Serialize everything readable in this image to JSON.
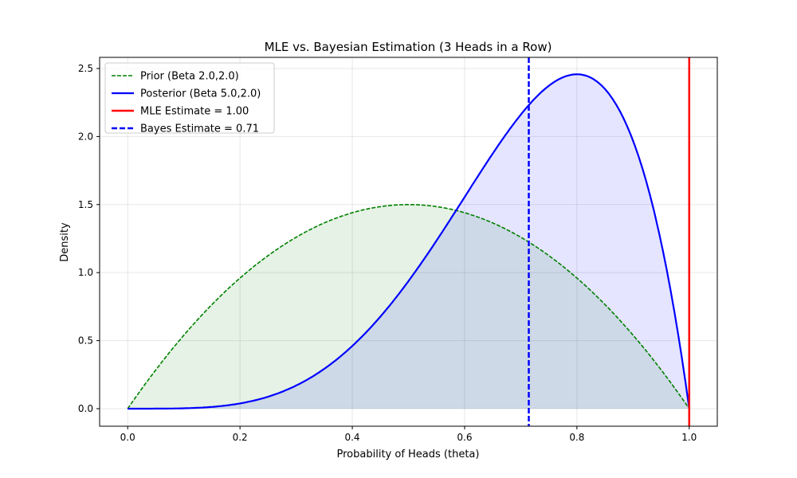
{
  "chart_data": {
    "type": "line",
    "title": "MLE vs. Bayesian Estimation (3 Heads in a Row)",
    "xlabel": "Probability of Heads (theta)",
    "ylabel": "Density",
    "xlim": [
      -0.05,
      1.05
    ],
    "ylim": [
      -0.129,
      2.582
    ],
    "xticks": [
      "0.0",
      "0.2",
      "0.4",
      "0.6",
      "0.8",
      "1.0"
    ],
    "xtick_values": [
      0,
      0.2,
      0.4,
      0.6,
      0.8,
      1.0
    ],
    "yticks": [
      "0.0",
      "0.5",
      "1.0",
      "1.5",
      "2.0",
      "2.5"
    ],
    "ytick_values": [
      0,
      0.5,
      1.0,
      1.5,
      2.0,
      2.5
    ],
    "grid": true,
    "legend_position": "top-left",
    "series": [
      {
        "name": "Prior (Beta 2.0,2.0)",
        "kind": "beta_pdf",
        "alpha": 2.0,
        "beta": 2.0,
        "color": "#008000",
        "style": "dashed",
        "fill": true
      },
      {
        "name": "Posterior (Beta 5.0,2.0)",
        "kind": "beta_pdf",
        "alpha": 5.0,
        "beta": 2.0,
        "color": "#0000ff",
        "style": "solid",
        "fill": true
      },
      {
        "name": "MLE Estimate = 1.00",
        "kind": "vline",
        "x": 1.0,
        "color": "#ff0000",
        "style": "solid"
      },
      {
        "name": "Bayes Estimate = 0.71",
        "kind": "vline",
        "x": 0.7143,
        "color": "#0000ff",
        "style": "dashed"
      }
    ]
  }
}
